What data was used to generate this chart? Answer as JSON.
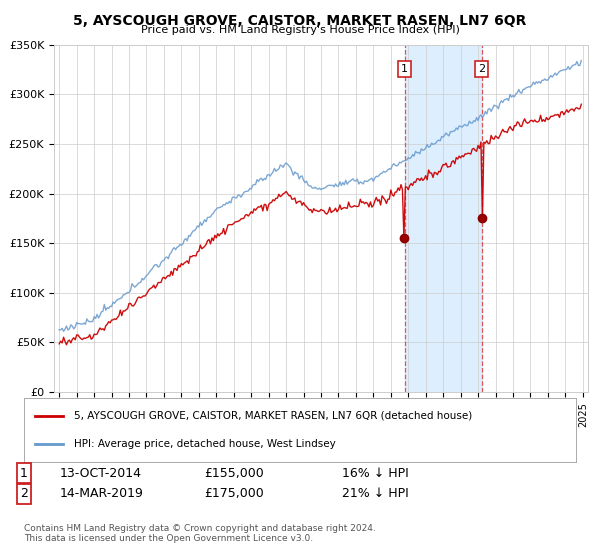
{
  "title": "5, AYSCOUGH GROVE, CAISTOR, MARKET RASEN, LN7 6QR",
  "subtitle": "Price paid vs. HM Land Registry's House Price Index (HPI)",
  "legend_line1": "5, AYSCOUGH GROVE, CAISTOR, MARKET RASEN, LN7 6QR (detached house)",
  "legend_line2": "HPI: Average price, detached house, West Lindsey",
  "transaction1_date": "13-OCT-2014",
  "transaction1_price": "£155,000",
  "transaction1_hpi": "16% ↓ HPI",
  "transaction2_date": "14-MAR-2019",
  "transaction2_price": "£175,000",
  "transaction2_hpi": "21% ↓ HPI",
  "footer": "Contains HM Land Registry data © Crown copyright and database right 2024.\nThis data is licensed under the Open Government Licence v3.0.",
  "red_color": "#cc0000",
  "blue_color": "#6699cc",
  "bg_color": "#ffffff",
  "highlight_color": "#ddeeff",
  "ylim_min": 0,
  "ylim_max": 350000,
  "yticks": [
    0,
    50000,
    100000,
    150000,
    200000,
    250000,
    300000,
    350000
  ],
  "ytick_labels": [
    "£0",
    "£50K",
    "£100K",
    "£150K",
    "£200K",
    "£250K",
    "£300K",
    "£350K"
  ],
  "transaction1_x": 2014.79,
  "transaction2_x": 2019.21,
  "transaction1_y": 155000,
  "transaction2_y": 175000,
  "xmin": 1994.7,
  "xmax": 2025.3
}
